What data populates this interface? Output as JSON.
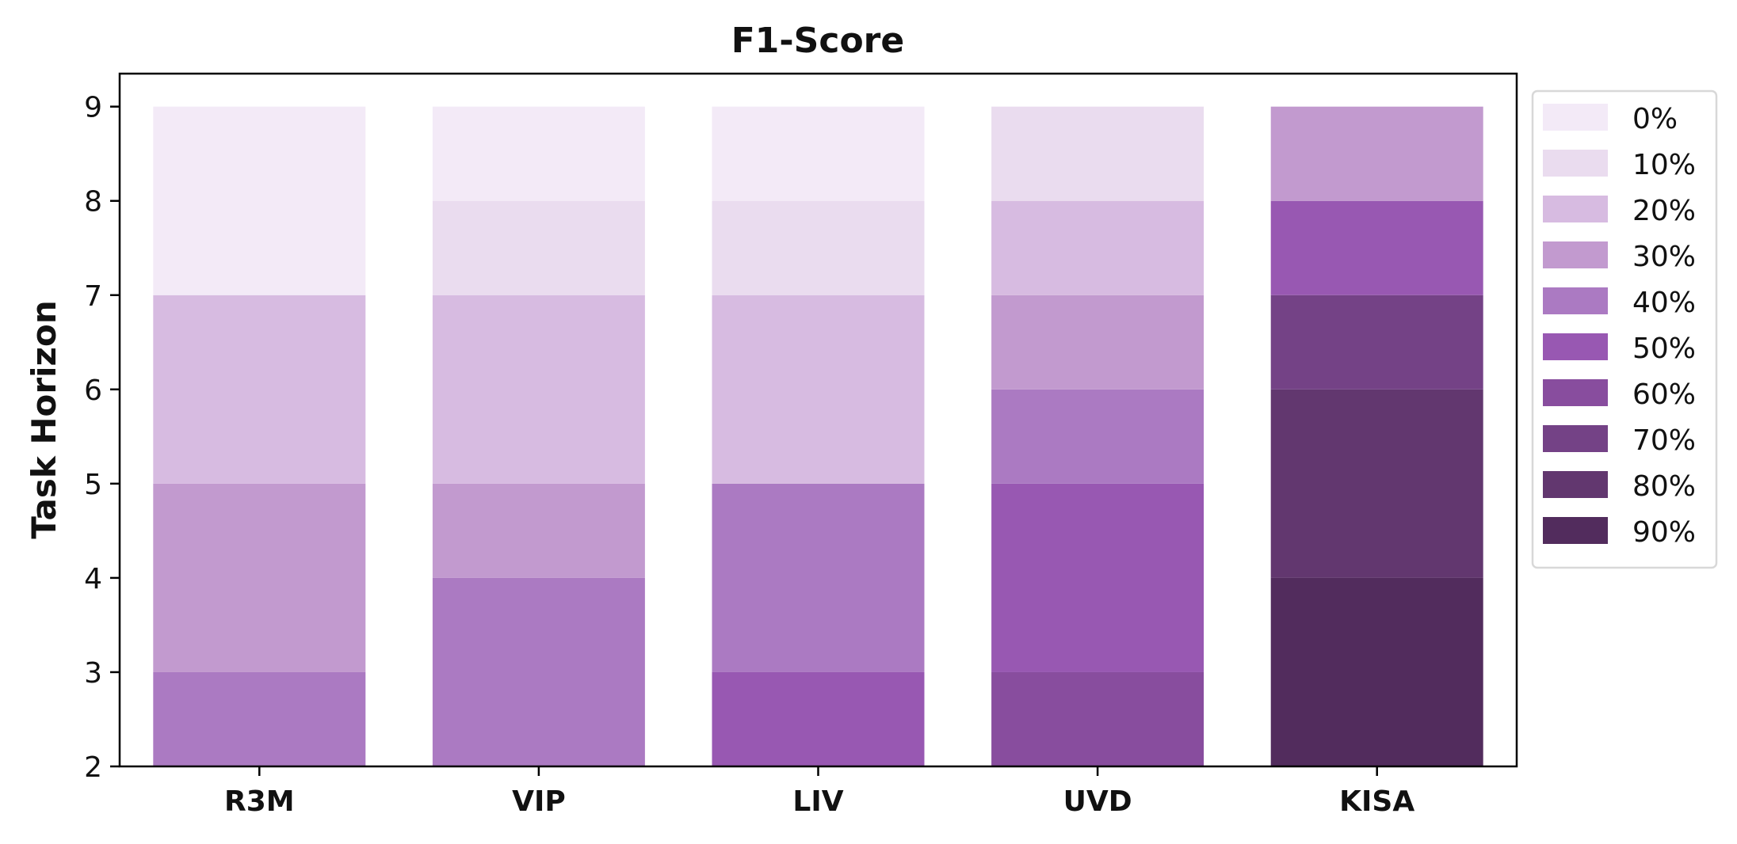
{
  "chart_data": {
    "type": "bar",
    "stacked": true,
    "title": "F1-Score",
    "xlabel": "",
    "ylabel": "Task Horizon",
    "categories": [
      "R3M",
      "VIP",
      "LIV",
      "UVD",
      "KISA"
    ],
    "ylim": [
      2,
      9.35
    ],
    "yticks": [
      2,
      3,
      4,
      5,
      6,
      7,
      8,
      9
    ],
    "legend_position": "outside-top-right",
    "legend": [
      {
        "label": "0%",
        "color": "#f3eaf7"
      },
      {
        "label": "10%",
        "color": "#eadcef"
      },
      {
        "label": "20%",
        "color": "#d7bbe1"
      },
      {
        "label": "30%",
        "color": "#c29acf"
      },
      {
        "label": "40%",
        "color": "#ab7ac2"
      },
      {
        "label": "50%",
        "color": "#9858b2"
      },
      {
        "label": "60%",
        "color": "#884d9e"
      },
      {
        "label": "70%",
        "color": "#744286"
      },
      {
        "label": "80%",
        "color": "#62376f"
      },
      {
        "label": "90%",
        "color": "#522c5d"
      }
    ],
    "bars": [
      {
        "category": "R3M",
        "segments": [
          {
            "from": 2,
            "to": 3,
            "level": "40%"
          },
          {
            "from": 3,
            "to": 5,
            "level": "30%"
          },
          {
            "from": 5,
            "to": 7,
            "level": "20%"
          },
          {
            "from": 7,
            "to": 9,
            "level": "0%"
          }
        ]
      },
      {
        "category": "VIP",
        "segments": [
          {
            "from": 2,
            "to": 4,
            "level": "40%"
          },
          {
            "from": 4,
            "to": 5,
            "level": "30%"
          },
          {
            "from": 5,
            "to": 7,
            "level": "20%"
          },
          {
            "from": 7,
            "to": 8,
            "level": "10%"
          },
          {
            "from": 8,
            "to": 9,
            "level": "0%"
          }
        ]
      },
      {
        "category": "LIV",
        "segments": [
          {
            "from": 2,
            "to": 3,
            "level": "50%"
          },
          {
            "from": 3,
            "to": 5,
            "level": "40%"
          },
          {
            "from": 5,
            "to": 7,
            "level": "20%"
          },
          {
            "from": 7,
            "to": 8,
            "level": "10%"
          },
          {
            "from": 8,
            "to": 9,
            "level": "0%"
          }
        ]
      },
      {
        "category": "UVD",
        "segments": [
          {
            "from": 2,
            "to": 3,
            "level": "60%"
          },
          {
            "from": 3,
            "to": 5,
            "level": "50%"
          },
          {
            "from": 5,
            "to": 6,
            "level": "40%"
          },
          {
            "from": 6,
            "to": 7,
            "level": "30%"
          },
          {
            "from": 7,
            "to": 8,
            "level": "20%"
          },
          {
            "from": 8,
            "to": 9,
            "level": "10%"
          }
        ]
      },
      {
        "category": "KISA",
        "segments": [
          {
            "from": 2,
            "to": 4,
            "level": "90%"
          },
          {
            "from": 4,
            "to": 6,
            "level": "80%"
          },
          {
            "from": 6,
            "to": 7,
            "level": "70%"
          },
          {
            "from": 7,
            "to": 8,
            "level": "50%"
          },
          {
            "from": 8,
            "to": 9,
            "level": "30%"
          }
        ]
      }
    ]
  }
}
